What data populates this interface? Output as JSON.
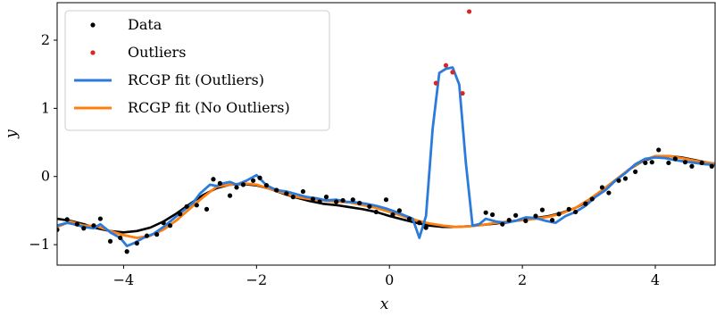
{
  "chart_data": {
    "type": "line",
    "title": "",
    "xlabel": "x",
    "ylabel": "y",
    "xlim": [
      -5,
      4.9
    ],
    "ylim": [
      -1.3,
      2.55
    ],
    "xticks": [
      -4,
      -2,
      0,
      2,
      4
    ],
    "xtick_labels": [
      "−4",
      "−2",
      "0",
      "2",
      "4"
    ],
    "yticks": [
      -1,
      0,
      1,
      2
    ],
    "ytick_labels": [
      "−1",
      "0",
      "1",
      "2"
    ],
    "grid": false,
    "legend_position": "top-left",
    "legend": [
      {
        "label": "Data",
        "marker": "dot",
        "color": "#000000"
      },
      {
        "label": "Outliers",
        "marker": "dot",
        "color": "#d62728"
      },
      {
        "label": "RCGP fit (Outliers)",
        "marker": "line",
        "color": "#2b7bdc"
      },
      {
        "label": "RCGP fit (No Outliers)",
        "marker": "line",
        "color": "#ff7f0e"
      }
    ],
    "colors": {
      "data": "#000000",
      "outliers": "#d62728",
      "fit_outliers": "#2b7bdc",
      "fit_no_outliers": "#ff7f0e",
      "true_function": "#000000"
    },
    "series": [
      {
        "name": "Data",
        "kind": "scatter",
        "x": [
          -5.0,
          -4.85,
          -4.7,
          -4.6,
          -4.45,
          -4.35,
          -4.2,
          -4.05,
          -3.95,
          -3.8,
          -3.65,
          -3.5,
          -3.4,
          -3.3,
          -3.15,
          -3.05,
          -2.9,
          -2.75,
          -2.65,
          -2.55,
          -2.4,
          -2.3,
          -2.2,
          -2.05,
          -1.95,
          -1.85,
          -1.7,
          -1.55,
          -1.45,
          -1.3,
          -1.15,
          -1.05,
          -0.95,
          -0.8,
          -0.7,
          -0.55,
          -0.45,
          -0.3,
          -0.2,
          -0.05,
          0.05,
          0.15,
          0.3,
          0.45,
          0.55,
          1.45,
          1.55,
          1.7,
          1.8,
          1.9,
          2.05,
          2.2,
          2.3,
          2.45,
          2.55,
          2.7,
          2.8,
          2.95,
          3.05,
          3.2,
          3.3,
          3.45,
          3.55,
          3.7,
          3.85,
          3.95,
          4.05,
          4.2,
          4.3,
          4.45,
          4.55,
          4.7,
          4.85
        ],
        "y": [
          -0.78,
          -0.63,
          -0.7,
          -0.76,
          -0.72,
          -0.62,
          -0.95,
          -0.9,
          -1.1,
          -0.98,
          -0.87,
          -0.85,
          -0.68,
          -0.72,
          -0.55,
          -0.44,
          -0.42,
          -0.48,
          -0.04,
          -0.1,
          -0.28,
          -0.16,
          -0.12,
          -0.06,
          -0.02,
          -0.13,
          -0.2,
          -0.25,
          -0.3,
          -0.22,
          -0.33,
          -0.37,
          -0.3,
          -0.37,
          -0.35,
          -0.34,
          -0.39,
          -0.44,
          -0.52,
          -0.34,
          -0.56,
          -0.5,
          -0.62,
          -0.68,
          -0.75,
          -0.53,
          -0.56,
          -0.7,
          -0.64,
          -0.57,
          -0.65,
          -0.58,
          -0.49,
          -0.64,
          -0.55,
          -0.48,
          -0.52,
          -0.4,
          -0.33,
          -0.16,
          -0.24,
          -0.06,
          -0.03,
          0.07,
          0.2,
          0.21,
          0.39,
          0.2,
          0.26,
          0.21,
          0.15,
          0.2,
          0.15
        ]
      },
      {
        "name": "Outliers",
        "kind": "scatter",
        "x": [
          0.7,
          0.85,
          0.95,
          1.1,
          1.2
        ],
        "y": [
          1.37,
          1.63,
          1.53,
          1.22,
          2.42
        ]
      },
      {
        "name": "RCGP fit (Outliers)",
        "kind": "line",
        "x": [
          -5.0,
          -4.85,
          -4.75,
          -4.6,
          -4.45,
          -4.35,
          -4.2,
          -4.05,
          -3.95,
          -3.85,
          -3.7,
          -3.55,
          -3.4,
          -3.25,
          -3.1,
          -2.95,
          -2.85,
          -2.7,
          -2.6,
          -2.5,
          -2.4,
          -2.3,
          -2.15,
          -2.0,
          -1.85,
          -1.7,
          -1.55,
          -1.4,
          -1.25,
          -1.1,
          -0.95,
          -0.8,
          -0.65,
          -0.5,
          -0.35,
          -0.2,
          -0.05,
          0.1,
          0.25,
          0.35,
          0.45,
          0.55,
          0.65,
          0.75,
          0.85,
          0.95,
          1.05,
          1.15,
          1.25,
          1.35,
          1.45,
          1.6,
          1.75,
          1.9,
          2.05,
          2.2,
          2.35,
          2.5,
          2.65,
          2.8,
          2.95,
          3.1,
          3.25,
          3.4,
          3.55,
          3.7,
          3.85,
          4.0,
          4.15,
          4.3,
          4.45,
          4.6,
          4.75,
          4.9
        ],
        "y": [
          -0.72,
          -0.68,
          -0.7,
          -0.74,
          -0.76,
          -0.7,
          -0.82,
          -0.9,
          -1.02,
          -0.98,
          -0.9,
          -0.84,
          -0.74,
          -0.62,
          -0.5,
          -0.38,
          -0.25,
          -0.12,
          -0.14,
          -0.1,
          -0.08,
          -0.12,
          -0.06,
          0.02,
          -0.13,
          -0.2,
          -0.22,
          -0.26,
          -0.3,
          -0.32,
          -0.35,
          -0.34,
          -0.37,
          -0.38,
          -0.4,
          -0.43,
          -0.47,
          -0.52,
          -0.58,
          -0.62,
          -0.9,
          -0.58,
          0.7,
          1.52,
          1.58,
          1.6,
          1.35,
          0.2,
          -0.72,
          -0.7,
          -0.62,
          -0.66,
          -0.68,
          -0.65,
          -0.6,
          -0.61,
          -0.65,
          -0.68,
          -0.58,
          -0.52,
          -0.43,
          -0.3,
          -0.2,
          -0.06,
          0.05,
          0.18,
          0.26,
          0.28,
          0.27,
          0.24,
          0.22,
          0.2,
          0.18,
          0.17
        ]
      },
      {
        "name": "RCGP fit (No Outliers)",
        "kind": "line",
        "x": [
          -5.0,
          -4.8,
          -4.6,
          -4.4,
          -4.2,
          -4.0,
          -3.8,
          -3.6,
          -3.4,
          -3.2,
          -3.0,
          -2.8,
          -2.6,
          -2.4,
          -2.2,
          -2.0,
          -1.8,
          -1.6,
          -1.4,
          -1.2,
          -1.0,
          -0.8,
          -0.6,
          -0.4,
          -0.2,
          0.0,
          0.2,
          0.4,
          0.6,
          0.8,
          1.0,
          1.2,
          1.4,
          1.6,
          1.8,
          2.0,
          2.2,
          2.4,
          2.6,
          2.8,
          3.0,
          3.2,
          3.4,
          3.6,
          3.8,
          4.0,
          4.2,
          4.4,
          4.6,
          4.8,
          4.9
        ],
        "y": [
          -0.74,
          -0.66,
          -0.72,
          -0.73,
          -0.8,
          -0.86,
          -0.9,
          -0.87,
          -0.78,
          -0.64,
          -0.47,
          -0.3,
          -0.15,
          -0.12,
          -0.1,
          -0.12,
          -0.18,
          -0.24,
          -0.3,
          -0.33,
          -0.35,
          -0.37,
          -0.38,
          -0.42,
          -0.46,
          -0.52,
          -0.58,
          -0.64,
          -0.69,
          -0.72,
          -0.74,
          -0.73,
          -0.71,
          -0.68,
          -0.66,
          -0.64,
          -0.62,
          -0.59,
          -0.54,
          -0.46,
          -0.34,
          -0.2,
          -0.05,
          0.1,
          0.23,
          0.3,
          0.3,
          0.27,
          0.23,
          0.2,
          0.19
        ]
      },
      {
        "name": "True function",
        "kind": "line",
        "x": [
          -5.0,
          -4.8,
          -4.6,
          -4.4,
          -4.2,
          -4.0,
          -3.8,
          -3.6,
          -3.4,
          -3.2,
          -3.0,
          -2.8,
          -2.6,
          -2.4,
          -2.2,
          -2.0,
          -1.8,
          -1.6,
          -1.4,
          -1.2,
          -1.0,
          -0.8,
          -0.6,
          -0.4,
          -0.2,
          0.0,
          0.2,
          0.4,
          0.6,
          0.8,
          1.0,
          1.2,
          1.4,
          1.6,
          1.8,
          2.0,
          2.2,
          2.4,
          2.6,
          2.8,
          3.0,
          3.2,
          3.4,
          3.6,
          3.8,
          4.0,
          4.2,
          4.4,
          4.6,
          4.8,
          4.9
        ],
        "y": [
          -0.62,
          -0.65,
          -0.7,
          -0.76,
          -0.8,
          -0.82,
          -0.8,
          -0.75,
          -0.66,
          -0.54,
          -0.4,
          -0.27,
          -0.17,
          -0.12,
          -0.11,
          -0.13,
          -0.18,
          -0.25,
          -0.31,
          -0.36,
          -0.4,
          -0.42,
          -0.45,
          -0.48,
          -0.52,
          -0.58,
          -0.63,
          -0.68,
          -0.72,
          -0.74,
          -0.74,
          -0.73,
          -0.71,
          -0.69,
          -0.66,
          -0.64,
          -0.61,
          -0.58,
          -0.53,
          -0.46,
          -0.36,
          -0.22,
          -0.06,
          0.1,
          0.22,
          0.29,
          0.3,
          0.28,
          0.24,
          0.2,
          0.19
        ]
      }
    ]
  }
}
